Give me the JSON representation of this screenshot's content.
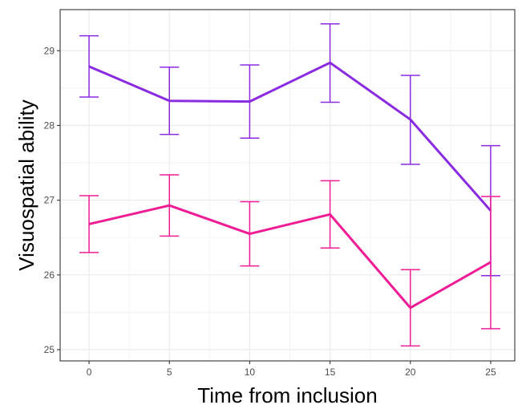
{
  "chart_data": {
    "type": "line",
    "xlabel": "Time from inclusion",
    "ylabel": "Visuospatial ability",
    "xlim": [
      -1.8,
      26.5
    ],
    "ylim": [
      24.85,
      29.55
    ],
    "x_ticks": [
      0,
      5,
      10,
      15,
      20,
      25
    ],
    "y_ticks": [
      25,
      26,
      27,
      28,
      29
    ],
    "grid": true,
    "legend": "none",
    "series": [
      {
        "color": "#8a2be2",
        "x": [
          0,
          5,
          10,
          15,
          20,
          25
        ],
        "y": [
          28.79,
          28.33,
          28.32,
          28.84,
          28.08,
          26.86
        ],
        "lower": [
          28.38,
          27.88,
          27.83,
          28.31,
          27.48,
          25.99
        ],
        "upper": [
          29.2,
          28.78,
          28.81,
          29.36,
          28.67,
          27.73
        ]
      },
      {
        "color": "#f01c96",
        "x": [
          0,
          5,
          10,
          15,
          20,
          25
        ],
        "y": [
          26.68,
          26.93,
          26.55,
          26.81,
          25.56,
          26.17
        ],
        "lower": [
          26.3,
          26.52,
          26.12,
          26.36,
          25.05,
          25.28
        ],
        "upper": [
          27.06,
          27.34,
          26.98,
          27.26,
          26.07,
          27.05
        ]
      }
    ]
  }
}
